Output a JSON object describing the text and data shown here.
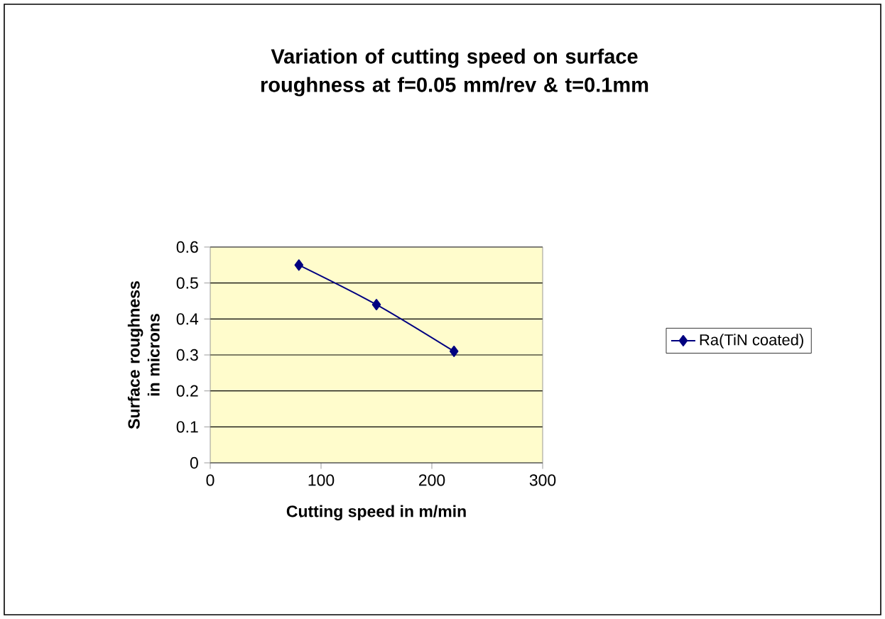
{
  "chart_data": {
    "type": "line",
    "title": "Variation of cutting speed on surface roughness at f=0.05 mm/rev & t=0.1mm",
    "xlabel": "Cutting speed in m/min",
    "ylabel": "Surface roughness in microns",
    "x": [
      80,
      150,
      220
    ],
    "series": [
      {
        "name": "Ra(TiN coated)",
        "color": "#000080",
        "values": [
          0.55,
          0.44,
          0.31
        ]
      }
    ],
    "xlim": [
      0,
      300
    ],
    "xticks": [
      0,
      100,
      200,
      300
    ],
    "ylim": [
      0,
      0.6
    ],
    "yticks": [
      0,
      0.1,
      0.2,
      0.3,
      0.4,
      0.5,
      0.6
    ],
    "grid": "y",
    "legend": "right",
    "marker": "diamond",
    "line_style": "solid"
  }
}
